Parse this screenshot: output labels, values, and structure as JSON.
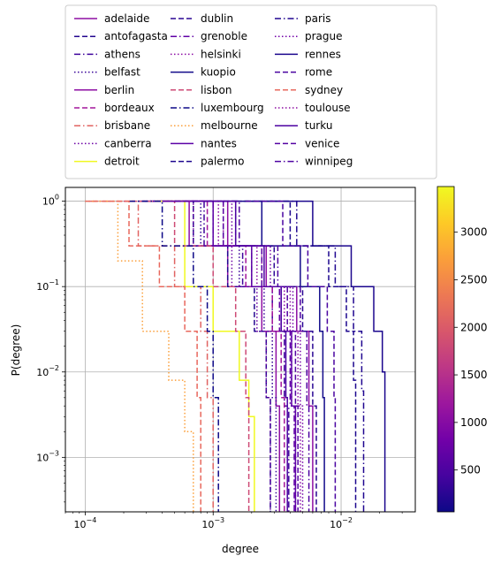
{
  "chart_data": {
    "type": "line",
    "title": "",
    "xlabel": "degree",
    "ylabel": "P(degree)",
    "xscale": "log",
    "yscale": "log",
    "xlim": [
      7e-05,
      0.038
    ],
    "ylim": [
      0.00023,
      1.45
    ],
    "grid": true,
    "legend_position": "top",
    "legend_columns": 3,
    "x_ticks": [
      {
        "value": 0.0001,
        "base": "10",
        "exp": "−4"
      },
      {
        "value": 0.001,
        "base": "10",
        "exp": "−3"
      },
      {
        "value": 0.01,
        "base": "10",
        "exp": "−2"
      }
    ],
    "y_ticks": [
      {
        "value": 1,
        "base": "10",
        "exp": "0"
      },
      {
        "value": 0.1,
        "base": "10",
        "exp": "−1"
      },
      {
        "value": 0.01,
        "base": "10",
        "exp": "−2"
      },
      {
        "value": 0.001,
        "base": "10",
        "exp": "−3"
      }
    ],
    "colorbar": {
      "colormap": "plasma",
      "range": [
        60,
        3480
      ],
      "ticks": [
        "500",
        "1000",
        "1500",
        "2000",
        "2500",
        "3000"
      ],
      "tick_values": [
        500,
        1000,
        1500,
        2000,
        2500,
        3000
      ],
      "stops": [
        "#0d0887",
        "#46039f",
        "#7201a8",
        "#9c179e",
        "#bd3786",
        "#d8576b",
        "#ed7953",
        "#fb9f3a",
        "#fdca26",
        "#f0f921"
      ]
    },
    "series": [
      {
        "name": "adelaide",
        "color": "#8e0ea3",
        "dash": "solid",
        "x": [
          0.00026,
          0.00065,
          0.0013,
          0.0024,
          0.0031,
          0.0033
        ],
        "y": [
          1.0,
          0.3,
          0.1,
          0.03,
          0.004,
          0.0012
        ]
      },
      {
        "name": "antofagasta",
        "color": "#23068f",
        "dash": "dashed",
        "x": [
          0.00028,
          0.0007,
          0.0013,
          0.0021,
          0.0026,
          0.0028
        ],
        "y": [
          1.0,
          0.3,
          0.1,
          0.03,
          0.005,
          0.0012
        ]
      },
      {
        "name": "athens",
        "color": "#3e049c",
        "dash": "dashdot",
        "x": [
          0.00034,
          0.00085,
          0.0017,
          0.0029,
          0.0036,
          0.0039
        ],
        "y": [
          1.0,
          0.3,
          0.1,
          0.03,
          0.004,
          0.0012
        ]
      },
      {
        "name": "belfast",
        "color": "#380499",
        "dash": "dotted",
        "x": [
          0.00032,
          0.0008,
          0.0016,
          0.0025,
          0.0029,
          0.0031
        ],
        "y": [
          1.0,
          0.3,
          0.1,
          0.03,
          0.005,
          0.0012
        ]
      },
      {
        "name": "berlin",
        "color": "#8d0ea3",
        "dash": "solid",
        "x": [
          0.0005,
          0.0013,
          0.0026,
          0.0045,
          0.0056,
          0.006
        ],
        "y": [
          1.0,
          0.3,
          0.1,
          0.03,
          0.004,
          0.0012
        ]
      },
      {
        "name": "bordeaux",
        "color": "#a3169b",
        "dash": "dashed",
        "x": [
          0.00038,
          0.0009,
          0.0018,
          0.0029,
          0.0034,
          0.0036
        ],
        "y": [
          1.0,
          0.3,
          0.1,
          0.03,
          0.005,
          0.0012
        ]
      },
      {
        "name": "brisbane",
        "color": "#e16362",
        "dash": "dashdot",
        "x": [
          0.00011,
          0.00026,
          0.0005,
          0.0008,
          0.0009,
          0.001
        ],
        "y": [
          1.0,
          0.3,
          0.1,
          0.03,
          0.005,
          0.0015
        ]
      },
      {
        "name": "canberra",
        "color": "#6c01a5",
        "dash": "dotted",
        "x": [
          0.0003,
          0.0007,
          0.0014,
          0.0022,
          0.0026,
          0.0028
        ],
        "y": [
          1.0,
          0.3,
          0.1,
          0.03,
          0.005,
          0.0012
        ]
      },
      {
        "name": "detroit",
        "color": "#f0f921",
        "dash": "solid",
        "x": [
          0.00035,
          0.0006,
          0.001,
          0.0016,
          0.0019,
          0.0021
        ],
        "y": [
          1.0,
          0.1,
          0.03,
          0.008,
          0.003,
          0.0012
        ]
      },
      {
        "name": "dublin",
        "color": "#2a0693",
        "dash": "dashed",
        "x": [
          0.0006,
          0.0015,
          0.003,
          0.005,
          0.006,
          0.0064
        ],
        "y": [
          1.0,
          0.3,
          0.1,
          0.03,
          0.004,
          0.0012
        ]
      },
      {
        "name": "grenoble",
        "color": "#6001a6",
        "dash": "dashdot",
        "x": [
          0.0004,
          0.001,
          0.002,
          0.0033,
          0.004,
          0.0043
        ],
        "y": [
          1.0,
          0.3,
          0.1,
          0.03,
          0.004,
          0.0012
        ]
      },
      {
        "name": "helsinki",
        "color": "#8c0da4",
        "dash": "dotted",
        "x": [
          0.00042,
          0.0011,
          0.0022,
          0.0036,
          0.0041,
          0.0044
        ],
        "y": [
          1.0,
          0.3,
          0.1,
          0.03,
          0.004,
          0.0012
        ]
      },
      {
        "name": "kuopio",
        "color": "#120a8a",
        "dash": "solid",
        "x": [
          0.0012,
          0.0024,
          0.0048,
          0.0068,
          0.0072,
          0.0074
        ],
        "y": [
          1.0,
          0.3,
          0.1,
          0.03,
          0.005,
          0.0012
        ]
      },
      {
        "name": "lisbon",
        "color": "#cd4a75",
        "dash": "dashed",
        "x": [
          0.0002,
          0.0005,
          0.001,
          0.0015,
          0.0018,
          0.0019
        ],
        "y": [
          1.0,
          0.3,
          0.1,
          0.03,
          0.005,
          0.0015
        ]
      },
      {
        "name": "luxembourg",
        "color": "#0d0887",
        "dash": "dashdot",
        "x": [
          0.00022,
          0.0004,
          0.0007,
          0.0009,
          0.001,
          0.0011
        ],
        "y": [
          1.0,
          0.3,
          0.1,
          0.03,
          0.005,
          0.0012
        ]
      },
      {
        "name": "melbourne",
        "color": "#fb9f3a",
        "dash": "dotted",
        "x": [
          0.0001,
          0.00018,
          0.00028,
          0.00045,
          0.0006,
          0.0007
        ],
        "y": [
          1.0,
          0.2,
          0.03,
          0.008,
          0.002,
          0.0003
        ]
      },
      {
        "name": "nantes",
        "color": "#5c01a6",
        "dash": "solid",
        "x": [
          0.0004,
          0.001,
          0.002,
          0.0034,
          0.0041,
          0.0044
        ],
        "y": [
          1.0,
          0.3,
          0.1,
          0.03,
          0.004,
          0.0012
        ]
      },
      {
        "name": "palermo",
        "color": "#1c068e",
        "dash": "dashed",
        "x": [
          0.0015,
          0.004,
          0.008,
          0.011,
          0.0125,
          0.013
        ],
        "y": [
          1.0,
          0.3,
          0.1,
          0.03,
          0.008,
          0.002
        ]
      },
      {
        "name": "paris",
        "color": "#200690",
        "dash": "dashdot",
        "x": [
          0.0014,
          0.0045,
          0.009,
          0.0125,
          0.0145,
          0.015
        ],
        "y": [
          1.0,
          0.3,
          0.1,
          0.03,
          0.006,
          0.0015
        ]
      },
      {
        "name": "prague",
        "color": "#7201a8",
        "dash": "dotted",
        "x": [
          0.0006,
          0.0014,
          0.0028,
          0.0042,
          0.0048,
          0.005
        ],
        "y": [
          1.0,
          0.3,
          0.1,
          0.03,
          0.004,
          0.0012
        ]
      },
      {
        "name": "rennes",
        "color": "#1b068d",
        "dash": "solid",
        "x": [
          0.0025,
          0.006,
          0.012,
          0.018,
          0.021,
          0.022
        ],
        "y": [
          1.0,
          0.3,
          0.1,
          0.03,
          0.01,
          0.0012
        ]
      },
      {
        "name": "rome",
        "color": "#4903a0",
        "dash": "dashed",
        "x": [
          0.0018,
          0.0035,
          0.0055,
          0.0078,
          0.0088,
          0.009
        ],
        "y": [
          1.0,
          0.3,
          0.1,
          0.03,
          0.005,
          0.0013
        ]
      },
      {
        "name": "sydney",
        "color": "#e8685d",
        "dash": "dashed",
        "x": [
          0.0001,
          0.00022,
          0.00038,
          0.0006,
          0.00075,
          0.0008
        ],
        "y": [
          1.0,
          0.3,
          0.1,
          0.03,
          0.005,
          0.0012
        ]
      },
      {
        "name": "toulouse",
        "color": "#8d0ea3",
        "dash": "dotted",
        "x": [
          0.0005,
          0.0012,
          0.0024,
          0.004,
          0.0046,
          0.0048
        ],
        "y": [
          1.0,
          0.3,
          0.1,
          0.03,
          0.004,
          0.0012
        ]
      },
      {
        "name": "turku",
        "color": "#4c02a1",
        "dash": "solid",
        "x": [
          0.00085,
          0.0015,
          0.0025,
          0.0034,
          0.0037,
          0.0038
        ],
        "y": [
          1.0,
          0.3,
          0.1,
          0.03,
          0.005,
          0.0012
        ]
      },
      {
        "name": "venice",
        "color": "#5402a3",
        "dash": "dashed",
        "x": [
          0.0005,
          0.0012,
          0.0024,
          0.0038,
          0.0044,
          0.0046
        ],
        "y": [
          1.0,
          0.3,
          0.1,
          0.03,
          0.004,
          0.0012
        ]
      },
      {
        "name": "winnipeg",
        "color": "#4e02a2",
        "dash": "dashdot",
        "x": [
          0.0007,
          0.0016,
          0.0032,
          0.0048,
          0.0054,
          0.0056
        ],
        "y": [
          1.0,
          0.3,
          0.1,
          0.03,
          0.004,
          0.0012
        ]
      }
    ]
  }
}
